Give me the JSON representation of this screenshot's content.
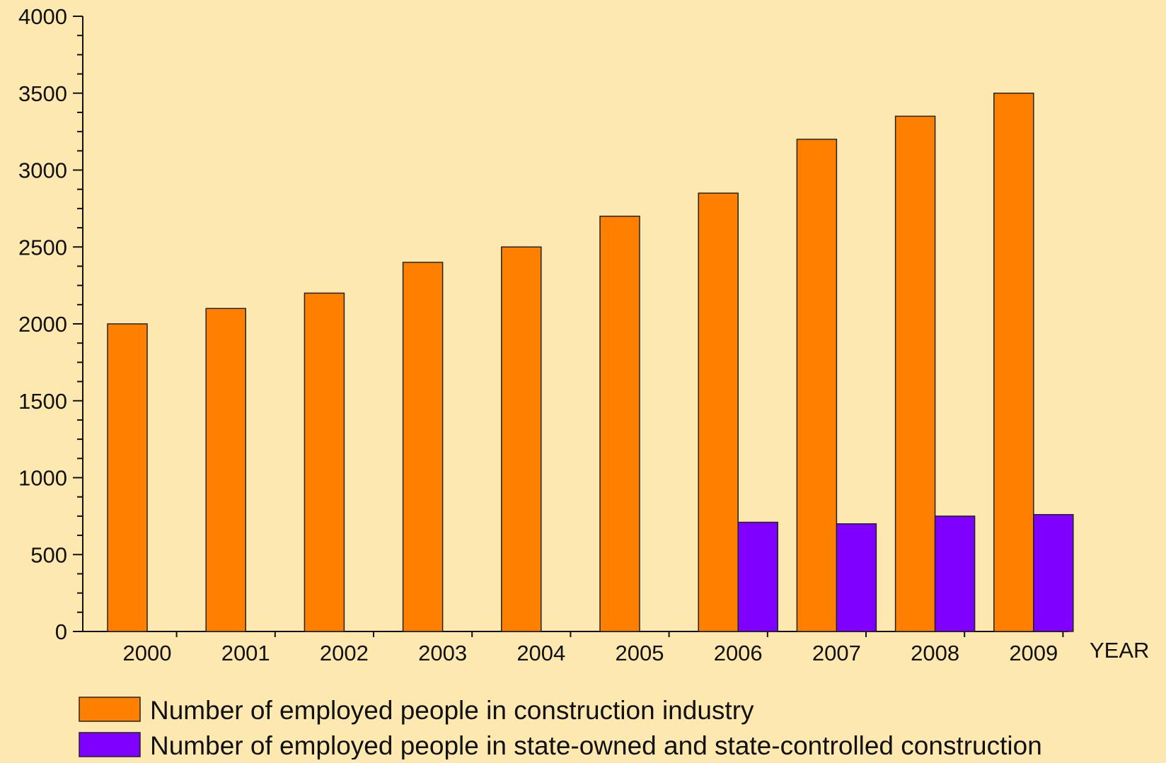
{
  "chart_data": {
    "type": "bar",
    "title": "",
    "xlabel": "YEAR",
    "ylabel": "",
    "ylim": [
      0,
      4000
    ],
    "y_major_ticks": [
      0,
      500,
      1000,
      1500,
      2000,
      2500,
      3000,
      3500,
      4000
    ],
    "y_minor_step": 125,
    "grid": false,
    "legend_position": "bottom",
    "background_color": "#fde9b0",
    "categories": [
      "2000",
      "2001",
      "2002",
      "2003",
      "2004",
      "2005",
      "2006",
      "2007",
      "2008",
      "2009"
    ],
    "series": [
      {
        "name": "Number of employed people in construction  industry",
        "color": "#ff8000",
        "values": [
          2000,
          2100,
          2200,
          2400,
          2500,
          2700,
          2850,
          3200,
          3350,
          3500
        ]
      },
      {
        "name": "Number of employed people in state-owned and state-controlled construction",
        "color": "#8000ff",
        "values": [
          null,
          null,
          null,
          null,
          null,
          null,
          710,
          700,
          750,
          760
        ]
      }
    ]
  }
}
